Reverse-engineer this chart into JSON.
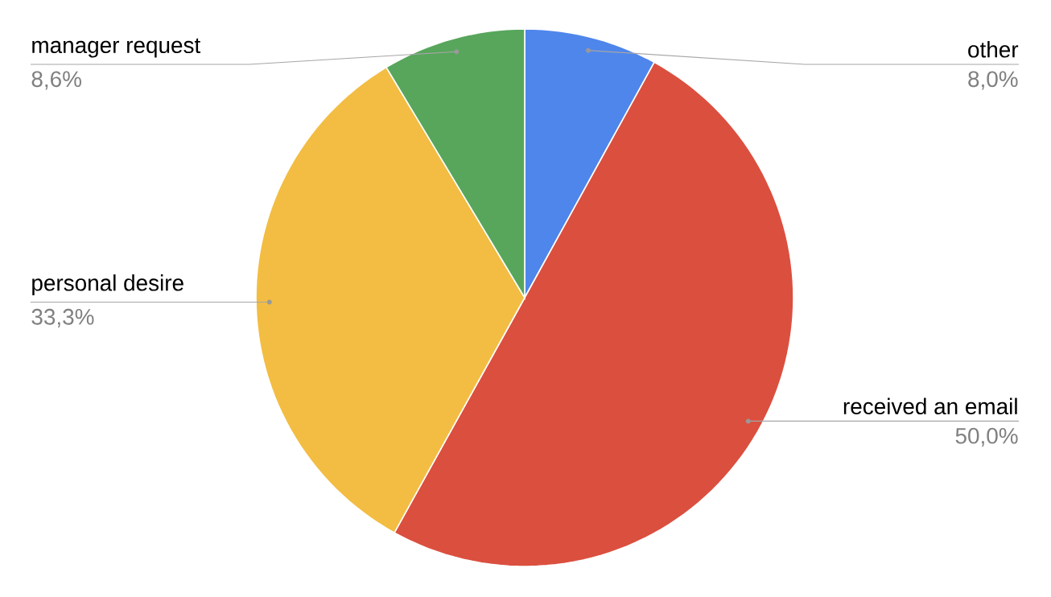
{
  "chart_data": {
    "type": "pie",
    "categories": [
      "other",
      "received an email",
      "personal desire",
      "manager request"
    ],
    "values": [
      8.0,
      50.0,
      33.3,
      8.6
    ],
    "value_labels": [
      "8,0%",
      "50,0%",
      "33,3%",
      "8,6%"
    ],
    "colors": [
      "#4f86ec",
      "#db4f3f",
      "#f2bd42",
      "#58a65c"
    ]
  }
}
